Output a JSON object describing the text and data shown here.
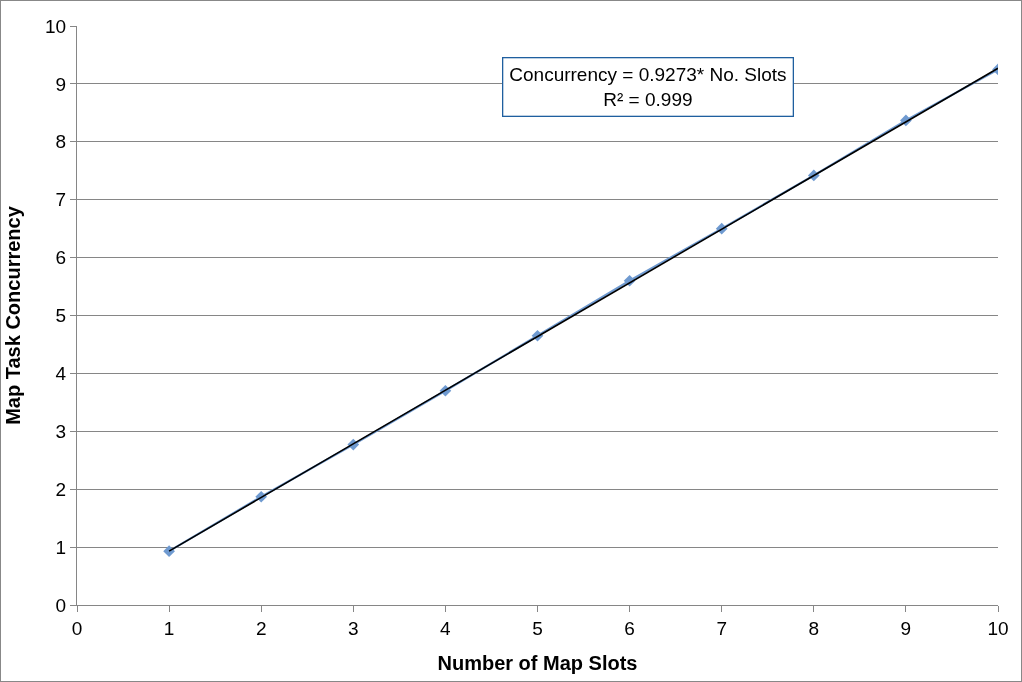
{
  "chart_data": {
    "type": "line",
    "xlabel": "Number of Map Slots",
    "ylabel": "Map Task Concurrency",
    "x": [
      1,
      2,
      3,
      4,
      5,
      6,
      7,
      8,
      9,
      10
    ],
    "series": [
      {
        "color": "#6f9ad0",
        "values": [
          0.93,
          1.87,
          2.77,
          3.7,
          4.65,
          5.6,
          6.5,
          7.42,
          8.37,
          9.25
        ],
        "marker": "diamond"
      },
      {
        "type": "line",
        "color": "#000000",
        "x": [
          1,
          10
        ],
        "values": [
          0.93,
          9.27
        ],
        "marker": "none"
      }
    ],
    "xlim": [
      0,
      10
    ],
    "xticks": [
      0,
      1,
      2,
      3,
      4,
      5,
      6,
      7,
      8,
      9,
      10
    ],
    "ylim": [
      0,
      10
    ],
    "yticks": [
      0,
      1,
      2,
      3,
      4,
      5,
      6,
      7,
      8,
      9,
      10
    ],
    "grid": "y",
    "annotations": [
      "Concurrency = 0.9273* No. Slots\nR² = 0.999"
    ]
  }
}
